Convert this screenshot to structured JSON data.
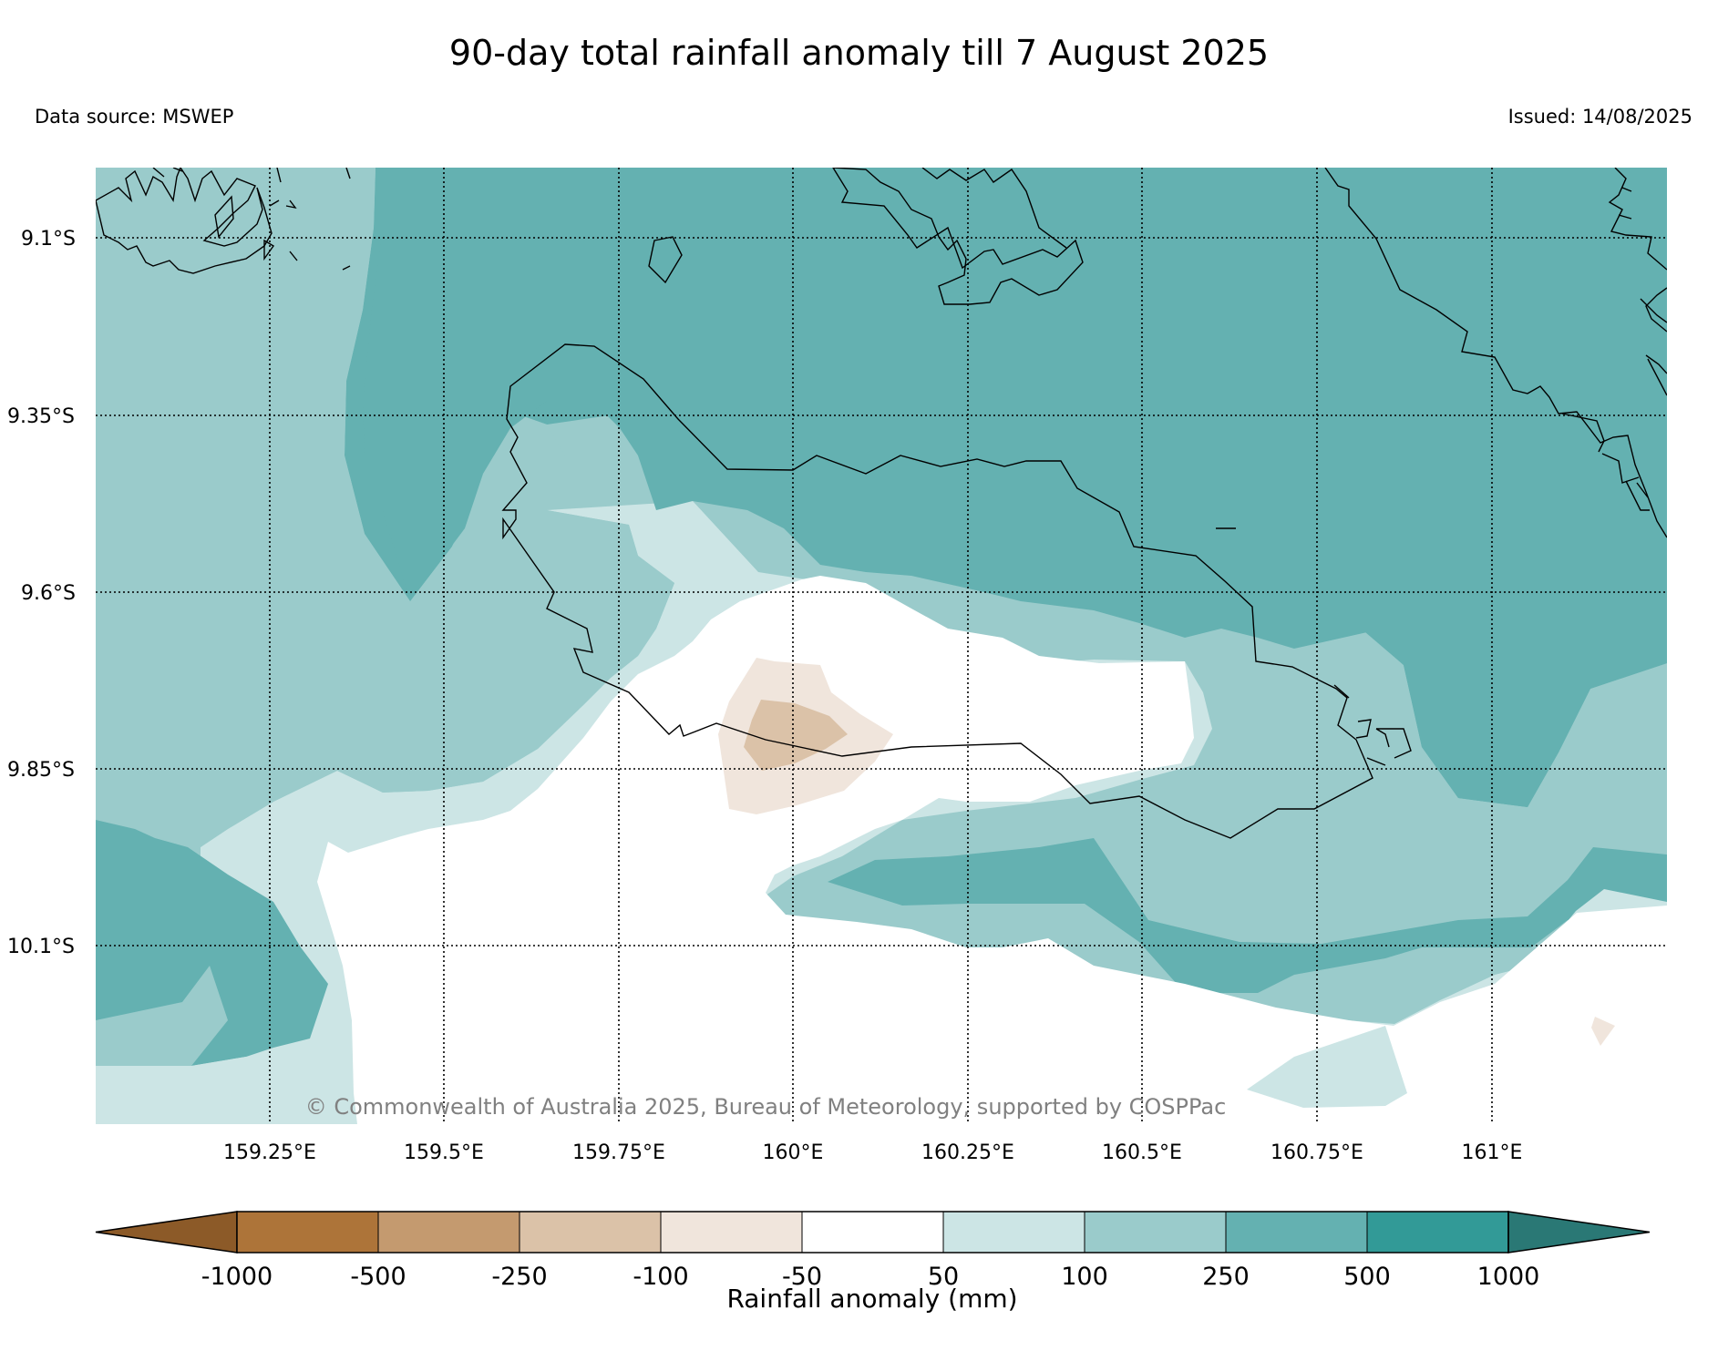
{
  "header": {
    "title": "90-day total rainfall anomaly till 7 August 2025",
    "source": "Data source: MSWEP",
    "issued": "Issued: 14/08/2025"
  },
  "map": {
    "lat_labels": [
      "9.1°S",
      "9.35°S",
      "9.6°S",
      "9.85°S",
      "10.1°S"
    ],
    "lon_labels": [
      "159.25°E",
      "159.5°E",
      "159.75°E",
      "160°E",
      "160.25°E",
      "160.5°E",
      "160.75°E",
      "161°E"
    ],
    "copyright": "© Commonwealth of Australia 2025, Bureau of Meteorology, supported by COSPPac"
  },
  "colorbar": {
    "label": "Rainfall anomaly (mm)",
    "ticks": [
      "-1000",
      "-500",
      "-250",
      "-100",
      "-50",
      "50",
      "100",
      "250",
      "500",
      "1000"
    ],
    "colors": {
      "lt_-1000": "#8c5a28",
      "-1000_-500": "#ad7439",
      "-500_-250": "#c49a6f",
      "-250_-100": "#dbc2a8",
      "-100_-50": "#f0e5dc",
      "-50_50": "#ffffff",
      "50_100": "#cce5e5",
      "100_250": "#9acbcb",
      "250_500": "#64b1b1",
      "500_1000": "#329a97",
      "gt_1000": "#2a7875"
    }
  }
}
